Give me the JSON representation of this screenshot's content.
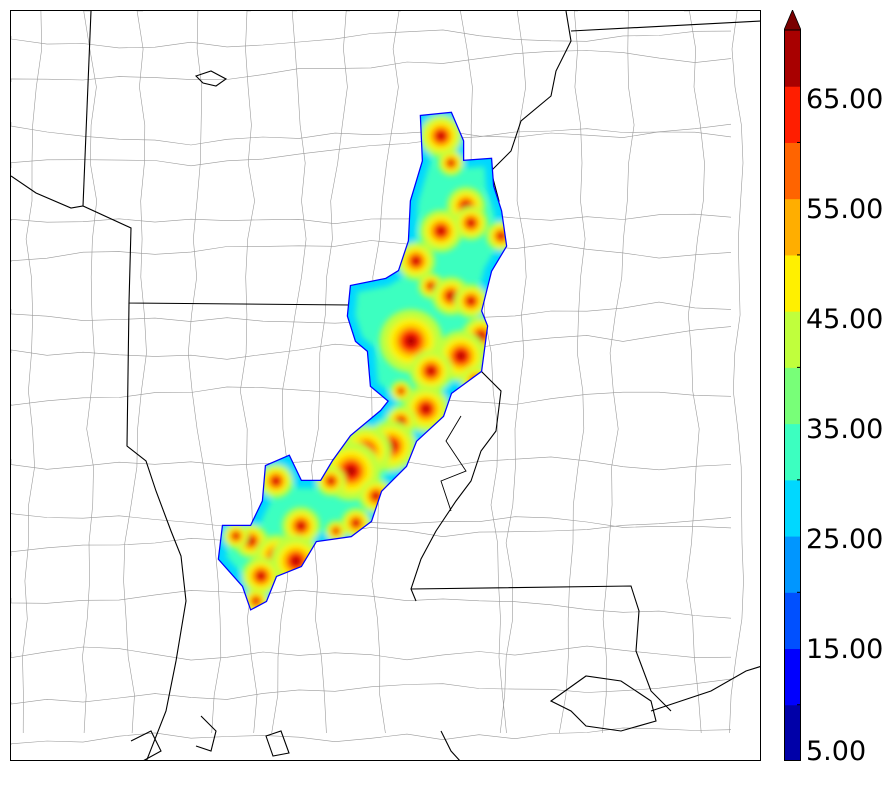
{
  "colorbar": {
    "extend": "max",
    "levels": [
      5,
      10,
      15,
      20,
      25,
      30,
      35,
      40,
      45,
      50,
      55,
      60,
      65,
      70
    ],
    "colors": [
      "#0000a8",
      "#0000ff",
      "#0050ff",
      "#0096ff",
      "#00d8ff",
      "#3cffc0",
      "#78ff78",
      "#c0ff3c",
      "#fff000",
      "#ffae00",
      "#ff6400",
      "#ff1e00",
      "#a80000"
    ],
    "over_color": "#7a0000",
    "tick_labels": [
      "5.00",
      "15.00",
      "25.00",
      "35.00",
      "45.00",
      "55.00",
      "65.00"
    ]
  },
  "map": {
    "boundary_color": "#000000",
    "county_color": "#9a9a9a",
    "field_colors": [
      "#0000ff",
      "#00d8ff",
      "#3cffc0",
      "#78ff78",
      "#c0ff3c",
      "#fff000",
      "#ffae00",
      "#ff1e00",
      "#a80000"
    ]
  }
}
